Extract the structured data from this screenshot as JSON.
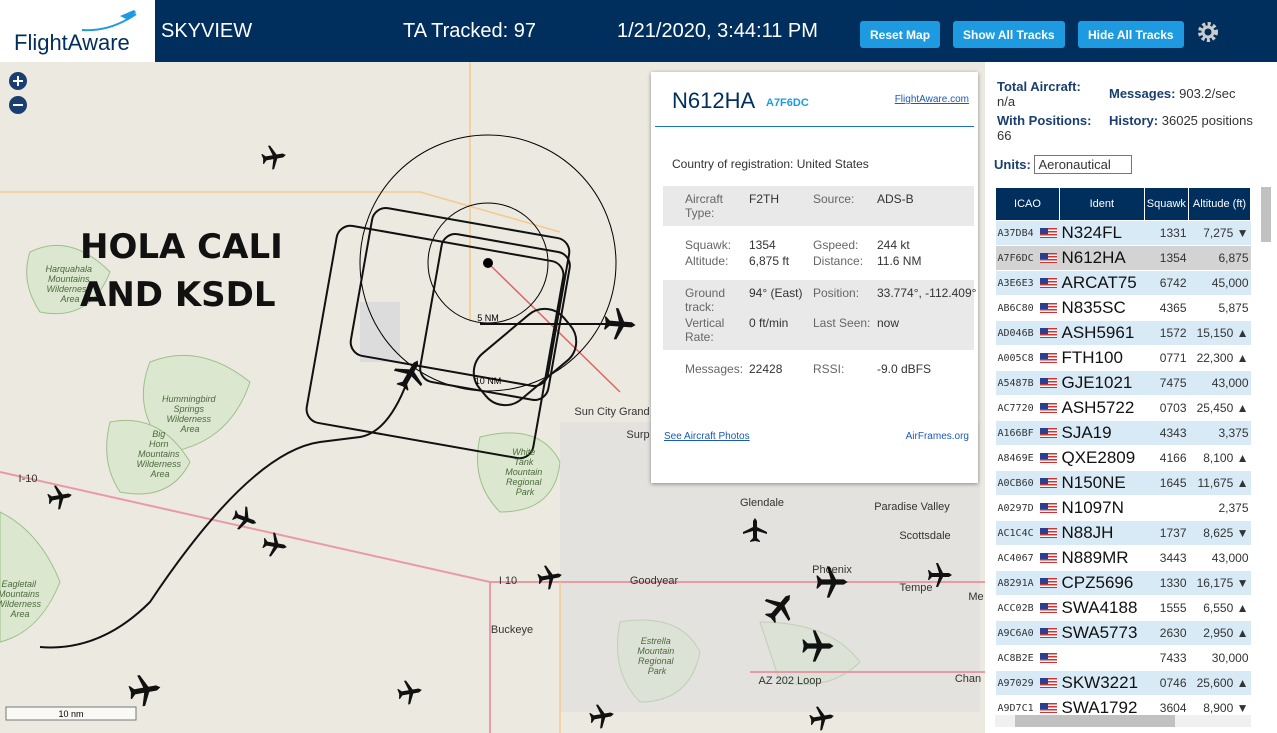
{
  "header": {
    "logo": "FlightAware",
    "app": "SKYVIEW",
    "tracked": "TA Tracked: 97",
    "datetime": "1/21/2020, 3:44:11 PM",
    "buttons": [
      "Reset Map",
      "Show All Tracks",
      "Hide All Tracks"
    ]
  },
  "map": {
    "overlay": [
      "HOLA CALI",
      "AND KSDL"
    ],
    "rings": [
      "5 NM",
      "10 NM"
    ],
    "scale": "10 nm",
    "places": [
      "Harquahala Mountains Wilderness Area",
      "Hummingbird Springs Wilderness Area",
      "Big Horn Mountains Wilderness Area",
      "Eagletail Mountains Wilderness Area",
      "White Tank Mountain Regional Park",
      "Estrella Mountain Regional Park",
      "Sun City Grand",
      "Surp",
      "Glendale",
      "Paradise Valley",
      "Scottsdale",
      "Phoenix",
      "Tempe",
      "Goodyear",
      "Buckeye",
      "I-10",
      "I 10",
      "AZ 202 Loop",
      "Chan",
      "Me"
    ]
  },
  "popup": {
    "ident": "N612HA",
    "hex": "A7F6DC",
    "link": "FlightAware.com",
    "country_label": "Country of registration:",
    "country": "United States",
    "sections": [
      [
        {
          "label": "Aircraft Type:",
          "value": "F2TH"
        },
        {
          "label": "Source:",
          "value": "ADS-B"
        }
      ],
      [
        {
          "label": "Squawk:",
          "value": "1354"
        },
        {
          "label": "Gspeed:",
          "value": "244 kt"
        },
        {
          "label": "Altitude:",
          "value": "6,875 ft"
        },
        {
          "label": "Distance:",
          "value": "11.6 NM"
        }
      ],
      [
        {
          "label": "Ground track:",
          "value": "94° (East)"
        },
        {
          "label": "Position:",
          "value": "33.774°, -112.409°"
        },
        {
          "label": "Vertical Rate:",
          "value": "0 ft/min"
        },
        {
          "label": "Last Seen:",
          "value": "now"
        }
      ],
      [
        {
          "label": "Messages:",
          "value": "22428"
        },
        {
          "label": "RSSI:",
          "value": "-9.0 dBFS"
        }
      ]
    ],
    "photos": "See Aircraft Photos",
    "airframes": "AirFrames.org"
  },
  "stats": [
    {
      "label": "Total Aircraft:",
      "value": "n/a"
    },
    {
      "label": "Messages:",
      "value": "903.2/sec"
    },
    {
      "label": "With Positions:",
      "value": "66"
    },
    {
      "label": "History:",
      "value": "36025 positions"
    }
  ],
  "units": {
    "label": "Units:",
    "value": "Aeronautical"
  },
  "table": {
    "headers": [
      "ICAO",
      "Ident",
      "Squawk",
      "Altitude (ft)"
    ],
    "rows": [
      [
        "A37DB4",
        "N324FL",
        "1331",
        "7,275",
        "▼"
      ],
      [
        "A7F6DC",
        "N612HA",
        "1354",
        "6,875",
        null
      ],
      [
        "A3E6E3",
        "ARCAT75",
        "6742",
        "45,000",
        null
      ],
      [
        "AB6C80",
        "N835SC",
        "4365",
        "5,875",
        null
      ],
      [
        "AD046B",
        "ASH5961",
        "1572",
        "15,150",
        "▲"
      ],
      [
        "A005C8",
        "FTH100",
        "0771",
        "22,300",
        "▲"
      ],
      [
        "A5487B",
        "GJE1021",
        "7475",
        "43,000",
        null
      ],
      [
        "AC7720",
        "ASH5722",
        "0703",
        "25,450",
        "▲"
      ],
      [
        "A166BF",
        "SJA19",
        "4343",
        "3,375",
        null
      ],
      [
        "A8469E",
        "QXE2809",
        "4166",
        "8,100",
        "▲"
      ],
      [
        "A0CB60",
        "N150NE",
        "1645",
        "11,675",
        "▲"
      ],
      [
        "A0297D",
        "N1097N",
        null,
        "2,375",
        null
      ],
      [
        "AC1C4C",
        "N88JH",
        "1737",
        "8,625",
        "▼"
      ],
      [
        "AC4067",
        "N889MR",
        "3443",
        "43,000",
        null
      ],
      [
        "A8291A",
        "CPZ5696",
        "1330",
        "16,175",
        "▼"
      ],
      [
        "ACC02B",
        "SWA4188",
        "1555",
        "6,550",
        "▲"
      ],
      [
        "A9C6A0",
        "SWA5773",
        "2630",
        "2,950",
        "▲"
      ],
      [
        "AC8B2E",
        null,
        "7433",
        "30,000",
        null
      ],
      [
        "A97029",
        "SKW3221",
        "0746",
        "25,600",
        "▲"
      ],
      [
        "A9D7C1",
        "SWA1792",
        "3604",
        "8,900",
        "▼"
      ]
    ]
  }
}
